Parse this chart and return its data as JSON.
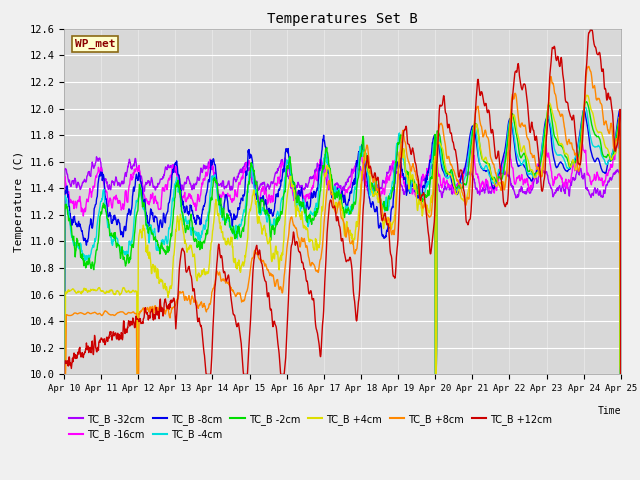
{
  "title": "Temperatures Set B",
  "xlabel": "Time",
  "ylabel": "Temperature (C)",
  "ylim": [
    10.0,
    12.6
  ],
  "xlim": [
    0,
    15
  ],
  "x_tick_labels": [
    "Apr 10",
    "Apr 11",
    "Apr 12",
    "Apr 13",
    "Apr 14",
    "Apr 15",
    "Apr 16",
    "Apr 17",
    "Apr 18",
    "Apr 19",
    "Apr 20",
    "Apr 21",
    "Apr 22",
    "Apr 23",
    "Apr 24",
    "Apr 25"
  ],
  "background_color": "#d8d8d8",
  "plot_bg": "#d8d8d8",
  "wp_met_label": "WP_met",
  "series": [
    {
      "label": "TC_B -32cm",
      "color": "#aa00ff"
    },
    {
      "label": "TC_B -16cm",
      "color": "#ff00ff"
    },
    {
      "label": "TC_B -8cm",
      "color": "#0000ee"
    },
    {
      "label": "TC_B -4cm",
      "color": "#00dddd"
    },
    {
      "label": "TC_B -2cm",
      "color": "#00dd00"
    },
    {
      "label": "TC_B +4cm",
      "color": "#dddd00"
    },
    {
      "label": "TC_B +8cm",
      "color": "#ff8800"
    },
    {
      "label": "TC_B +12cm",
      "color": "#cc0000"
    }
  ],
  "legend_fontsize": 8,
  "title_fontsize": 10
}
